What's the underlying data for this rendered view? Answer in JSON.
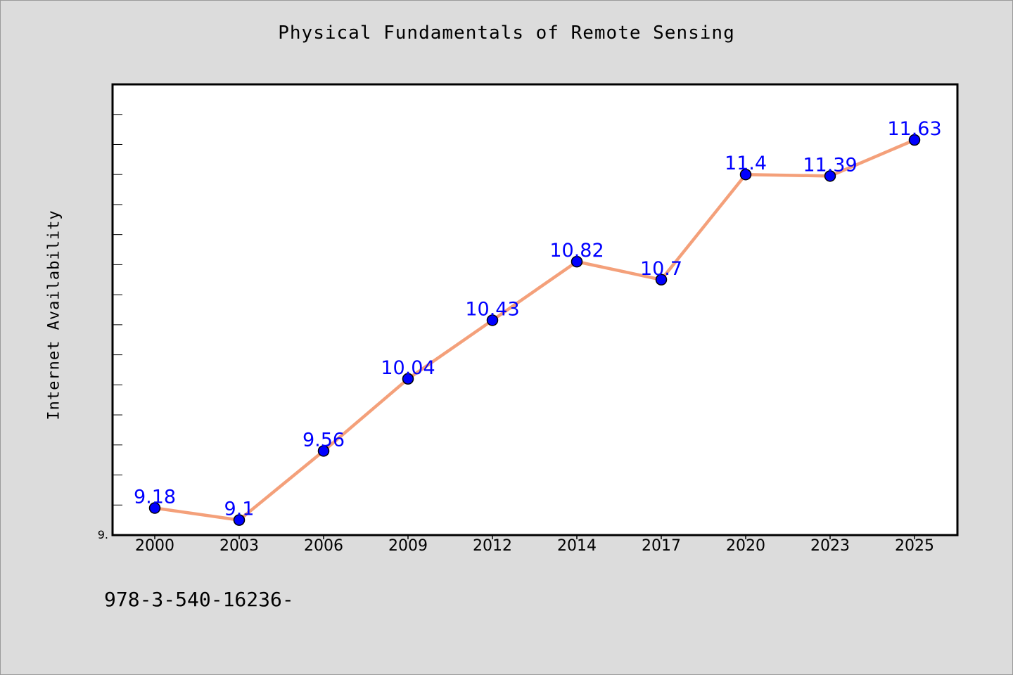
{
  "chart_data": {
    "type": "line",
    "title": "Physical Fundamentals of Remote Sensing",
    "xlabel": "",
    "ylabel": "Internet Availability",
    "categories": [
      "2000",
      "2003",
      "2006",
      "2009",
      "2012",
      "2014",
      "2017",
      "2020",
      "2023",
      "2025"
    ],
    "series": [
      {
        "values": [
          9.18,
          9.1,
          9.56,
          10.04,
          10.43,
          10.82,
          10.7,
          11.4,
          11.39,
          11.63
        ]
      }
    ],
    "data_labels": [
      "9.18",
      "9.1",
      "9.56",
      "10.04",
      "10.43",
      "10.82",
      "10.7",
      "11.4",
      "11.39",
      "11.63"
    ],
    "ytick_labels": [
      "9."
    ],
    "ylim": [
      9.0,
      12.0
    ],
    "grid": false,
    "legend": "none",
    "colors": {
      "line": "#f4a07a",
      "marker": "#0000ff",
      "data_label": "#0000ff",
      "plot_background": "#ffffff",
      "page_background": "#dcdcdc"
    }
  },
  "footer_note": "978-3-540-16236-"
}
